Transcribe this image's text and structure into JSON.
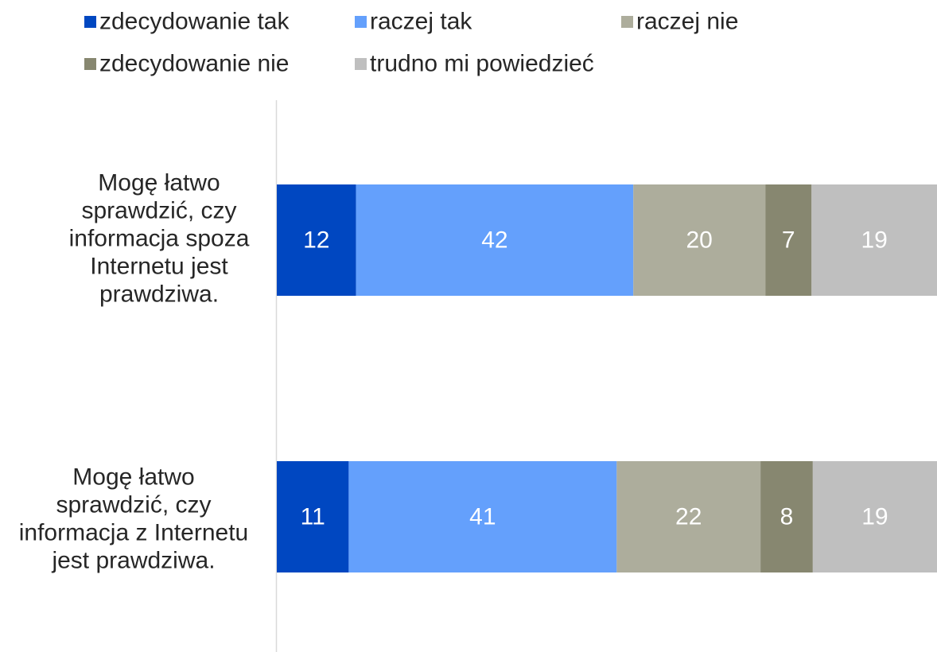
{
  "chart_data": {
    "type": "bar",
    "orientation": "horizontal",
    "stacked": true,
    "categories": [
      "Mogę łatwo sprawdzić, czy informacja spoza Internetu jest prawdziwa.",
      "Mogę łatwo sprawdzić, czy informacja z Internetu jest prawdziwa."
    ],
    "series": [
      {
        "name": "zdecydowanie tak",
        "color": "#0047C1",
        "values": [
          12,
          11
        ]
      },
      {
        "name": "raczej tak",
        "color": "#64A0FC",
        "values": [
          42,
          41
        ]
      },
      {
        "name": "raczej nie",
        "color": "#ADAD9C",
        "values": [
          20,
          22
        ]
      },
      {
        "name": "zdecydowanie nie",
        "color": "#878770",
        "values": [
          7,
          8
        ]
      },
      {
        "name": "trudno mi powiedzieć",
        "color": "#BFBFBF",
        "values": [
          19,
          19
        ]
      }
    ],
    "data_labels": true,
    "grid": false,
    "legend_position": "top",
    "xlim": [
      0,
      100
    ]
  }
}
